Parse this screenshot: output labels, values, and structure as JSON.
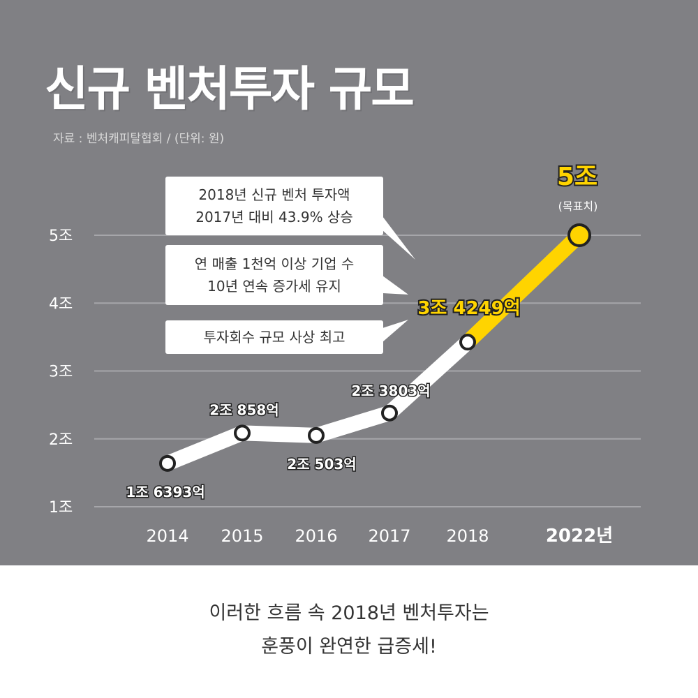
{
  "header": {
    "title": "신규 벤처투자 규모",
    "source": "자료 : 벤처캐피탈협회  / (단위: 원)"
  },
  "callouts": [
    {
      "lines": [
        "2018년 신규 벤처 투자액",
        "2017년 대비 43.9% 상승"
      ]
    },
    {
      "lines": [
        "연 매출 1천억 이상 기업 수",
        "10년 연속 증가세 유지"
      ]
    },
    {
      "lines": [
        "투자회수 규모 사상 최고"
      ]
    }
  ],
  "footer": {
    "lines": [
      "이러한 흐름 속 2018년 벤처투자는",
      "훈풍이 완연한 급증세!"
    ]
  },
  "colors": {
    "panel": "#808084",
    "grid": "#a6a6aa",
    "highlight": "#ffd400",
    "line": "#ffffff",
    "marker_stroke": "#222222"
  },
  "chart_data": {
    "type": "line",
    "x": [
      "2014",
      "2015",
      "2016",
      "2017",
      "2018",
      "2022년"
    ],
    "values": [
      1.6393,
      2.0858,
      2.0503,
      2.3803,
      3.4249,
      5.0
    ],
    "data_labels": [
      "1조 6393억",
      "2조 858억",
      "2조 503억",
      "2조 3803억",
      "3조 4249억",
      "5조"
    ],
    "target_note": "(목표치)",
    "highlight_from_index": 4,
    "yticks": [
      1,
      2,
      3,
      4,
      5
    ],
    "ytick_labels": [
      "1조",
      "2조",
      "3조",
      "4조",
      "5조"
    ],
    "ylim": [
      1,
      5
    ],
    "grid": true,
    "legend": "none"
  }
}
